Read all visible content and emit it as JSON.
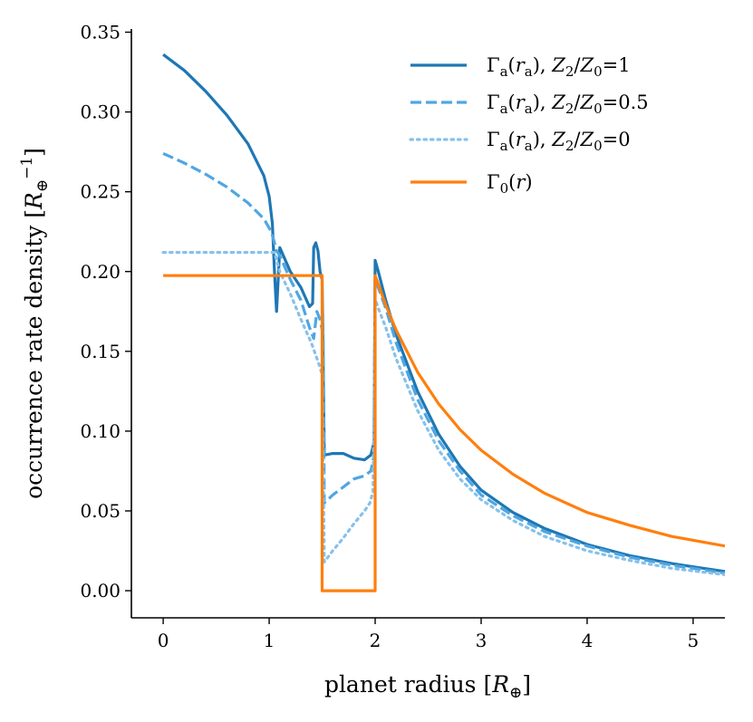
{
  "chart_data": {
    "type": "line",
    "title": "",
    "xlabel": "planet radius [R⊕]",
    "ylabel": "occurrence rate density [R⊕⁻¹]",
    "xlim": [
      -0.3,
      5.3
    ],
    "ylim": [
      -0.017,
      0.352
    ],
    "x_ticks": [
      0,
      1,
      2,
      3,
      4,
      5
    ],
    "x_tick_labels": [
      "0",
      "1",
      "2",
      "3",
      "4",
      "5"
    ],
    "y_ticks": [
      0,
      0.05,
      0.1,
      0.15,
      0.2,
      0.25,
      0.3,
      0.35
    ],
    "y_tick_labels": [
      "0.00",
      "0.05",
      "0.10",
      "0.15",
      "0.20",
      "0.25",
      "0.30",
      "0.35"
    ],
    "grid": false,
    "legend_position": "top-right",
    "series": [
      {
        "name": "Γa(ra), Z2/Z0=1",
        "color": "#1f77b4",
        "dash": "solid",
        "x": [
          0.0,
          0.2,
          0.4,
          0.6,
          0.8,
          0.95,
          1.0,
          1.03,
          1.05,
          1.07,
          1.1,
          1.2,
          1.3,
          1.38,
          1.41,
          1.42,
          1.44,
          1.46,
          1.48,
          1.5,
          1.52,
          1.6,
          1.7,
          1.8,
          1.9,
          1.96,
          1.99,
          2.0,
          2.03,
          2.1,
          2.2,
          2.4,
          2.6,
          2.8,
          3.0,
          3.3,
          3.6,
          4.0,
          4.4,
          4.8,
          5.3
        ],
        "y": [
          0.336,
          0.326,
          0.313,
          0.298,
          0.28,
          0.26,
          0.247,
          0.23,
          0.2,
          0.175,
          0.215,
          0.2,
          0.19,
          0.178,
          0.18,
          0.215,
          0.218,
          0.213,
          0.2,
          0.195,
          0.085,
          0.086,
          0.086,
          0.083,
          0.082,
          0.085,
          0.093,
          0.207,
          0.2,
          0.182,
          0.16,
          0.125,
          0.098,
          0.078,
          0.063,
          0.049,
          0.039,
          0.029,
          0.022,
          0.017,
          0.012
        ]
      },
      {
        "name": "Γa(ra), Z2/Z0=0.5",
        "color": "#4fa6e3",
        "dash": "dashed",
        "x": [
          0.0,
          0.2,
          0.4,
          0.6,
          0.8,
          0.95,
          1.02,
          1.05,
          1.07,
          1.1,
          1.2,
          1.3,
          1.38,
          1.42,
          1.45,
          1.48,
          1.51,
          1.52,
          1.6,
          1.7,
          1.8,
          1.9,
          1.96,
          1.99,
          2.0,
          2.03,
          2.1,
          2.2,
          2.4,
          2.6,
          2.8,
          3.0,
          3.3,
          3.6,
          4.0,
          4.4,
          4.8,
          5.3
        ],
        "y": [
          0.274,
          0.268,
          0.261,
          0.253,
          0.243,
          0.233,
          0.225,
          0.218,
          0.213,
          0.21,
          0.195,
          0.182,
          0.165,
          0.158,
          0.175,
          0.17,
          0.16,
          0.055,
          0.06,
          0.065,
          0.07,
          0.072,
          0.075,
          0.085,
          0.195,
          0.19,
          0.177,
          0.155,
          0.12,
          0.094,
          0.075,
          0.06,
          0.047,
          0.037,
          0.028,
          0.021,
          0.016,
          0.011
        ]
      },
      {
        "name": "Γa(ra), Z2/Z0=0",
        "color": "#87c1ea",
        "dash": "dotted",
        "x": [
          0.0,
          0.3,
          0.6,
          0.9,
          1.05,
          1.1,
          1.2,
          1.3,
          1.4,
          1.48,
          1.5,
          1.52,
          1.6,
          1.7,
          1.8,
          1.9,
          1.95,
          1.98,
          2.0,
          2.03,
          2.1,
          2.2,
          2.4,
          2.6,
          2.8,
          3.0,
          3.3,
          3.6,
          4.0,
          4.4,
          4.8,
          5.3
        ],
        "y": [
          0.212,
          0.212,
          0.212,
          0.212,
          0.212,
          0.2,
          0.186,
          0.17,
          0.155,
          0.14,
          0.135,
          0.018,
          0.025,
          0.033,
          0.042,
          0.05,
          0.055,
          0.062,
          0.183,
          0.177,
          0.165,
          0.145,
          0.113,
          0.088,
          0.07,
          0.057,
          0.044,
          0.034,
          0.025,
          0.019,
          0.014,
          0.01
        ]
      },
      {
        "name": "Γ0(r)",
        "color": "#ff7f0e",
        "dash": "solid",
        "x": [
          0.0,
          1.5,
          1.5,
          2.0,
          2.0,
          2.1,
          2.2,
          2.4,
          2.6,
          2.8,
          3.0,
          3.3,
          3.6,
          4.0,
          4.4,
          4.8,
          5.3
        ],
        "y": [
          0.1975,
          0.1975,
          0.0,
          0.0,
          0.1975,
          0.179,
          0.163,
          0.137,
          0.117,
          0.101,
          0.088,
          0.073,
          0.061,
          0.049,
          0.041,
          0.034,
          0.028
        ]
      }
    ]
  },
  "legend": {
    "items": [
      {
        "label": "Γa(ra), Z2/Z0=1"
      },
      {
        "label": "Γa(ra), Z2/Z0=0.5"
      },
      {
        "label": "Γa(ra), Z2/Z0=0"
      },
      {
        "label": "Γ0(r)"
      }
    ]
  }
}
